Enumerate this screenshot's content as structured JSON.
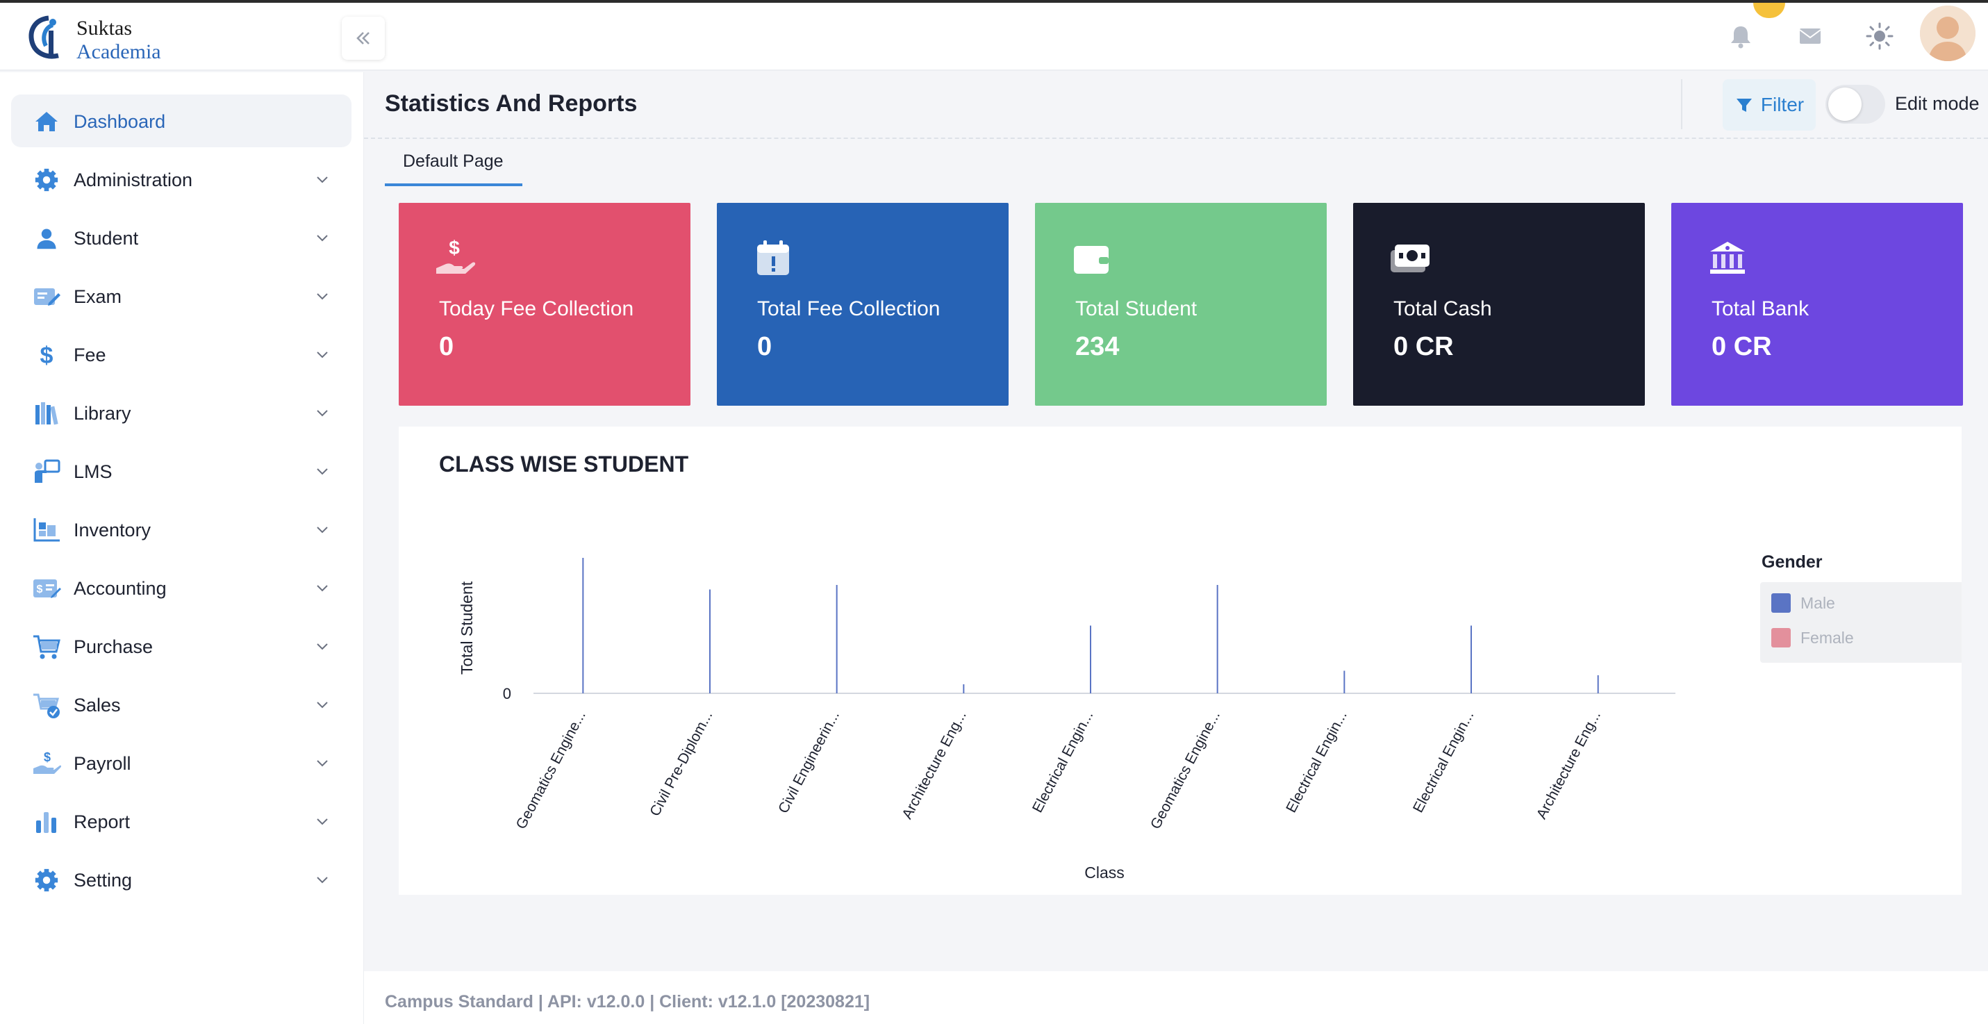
{
  "app": {
    "logo_line1": "Suktas",
    "logo_line2": "Academia",
    "brand_color": "#2a66b8"
  },
  "topbar": {
    "icons": [
      "bell-icon",
      "mail-icon",
      "sun-icon"
    ],
    "notification_badge_color": "#f5c13b"
  },
  "sidebar": {
    "items": [
      {
        "label": "Dashboard",
        "icon": "home-icon",
        "active": true
      },
      {
        "label": "Administration",
        "icon": "gear-icon"
      },
      {
        "label": "Student",
        "icon": "user-icon"
      },
      {
        "label": "Exam",
        "icon": "edit-icon"
      },
      {
        "label": "Fee",
        "icon": "dollar-icon"
      },
      {
        "label": "Library",
        "icon": "books-icon"
      },
      {
        "label": "LMS",
        "icon": "teacher-board-icon"
      },
      {
        "label": "Inventory",
        "icon": "inventory-icon"
      },
      {
        "label": "Accounting",
        "icon": "accounting-icon"
      },
      {
        "label": "Purchase",
        "icon": "cart-icon"
      },
      {
        "label": "Sales",
        "icon": "cart-check-icon"
      },
      {
        "label": "Payroll",
        "icon": "hand-dollar-icon"
      },
      {
        "label": "Report",
        "icon": "bar-chart-icon"
      },
      {
        "label": "Setting",
        "icon": "gear-icon"
      }
    ]
  },
  "header": {
    "title": "Statistics And Reports",
    "filter_label": "Filter",
    "edit_mode_label": "Edit mode",
    "edit_mode_on": false
  },
  "tabs": [
    {
      "label": "Default Page",
      "active": true
    }
  ],
  "cards": [
    {
      "label": "Today Fee Collection",
      "value": "0",
      "color": "#e2506e",
      "icon": "hand-dollar-icon"
    },
    {
      "label": "Total Fee Collection",
      "value": "0",
      "color": "#2763b5",
      "icon": "calendar-alert-icon"
    },
    {
      "label": "Total Student",
      "value": "234",
      "color": "#74c98c",
      "icon": "wallet-icon"
    },
    {
      "label": "Total Cash",
      "value": "0 CR",
      "color": "#191c2c",
      "icon": "cash-icon"
    },
    {
      "label": "Total Bank",
      "value": "0 CR",
      "color": "#6d47e0",
      "icon": "bank-icon"
    }
  ],
  "chart": {
    "title": "CLASS WISE STUDENT"
  },
  "chart_data": {
    "type": "bar",
    "title": "CLASS WISE STUDENT",
    "xlabel": "Class",
    "ylabel": "Total Student",
    "y_tick_labels": [
      "0"
    ],
    "categories": [
      "Geomatics Engine...",
      "Civil Pre-Diplom...",
      "Civil Engineerin...",
      "Architecture Eng...",
      "Electrical Engin...",
      "Geomatics Engine...",
      "Electrical Engin...",
      "Electrical Engin...",
      "Architecture Eng..."
    ],
    "series": [
      {
        "name": "Male",
        "color": "#5a74c4",
        "values": [
          30,
          23,
          24,
          2,
          15,
          24,
          5,
          15,
          4
        ]
      },
      {
        "name": "Female",
        "color": "#e3909c",
        "values": [
          0,
          0,
          0,
          0,
          0,
          0,
          0,
          0,
          0
        ]
      }
    ],
    "ylim": [
      0,
      32
    ],
    "legend_title": "Gender",
    "legend_position": "right",
    "grid": false
  },
  "footer": {
    "text": "Campus Standard | API: v12.0.0 | Client: v12.1.0 [20230821]"
  }
}
